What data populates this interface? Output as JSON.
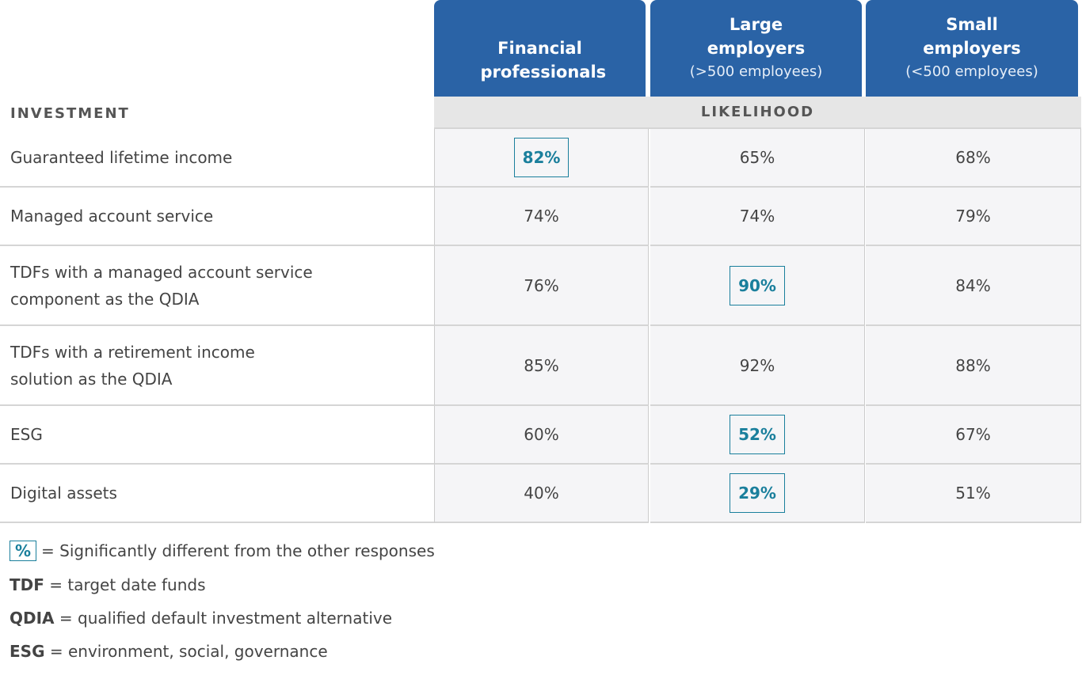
{
  "table": {
    "row_header_label": "INVESTMENT",
    "group_label": "LIKELIHOOD",
    "column_headers": [
      {
        "title": "Financial professionals"
      },
      {
        "title": "Large employers",
        "subtitle": "(>500 employees)"
      },
      {
        "title": "Small employers",
        "subtitle": "(<500 employees)"
      }
    ],
    "rows": [
      {
        "label_lines": [
          "Guaranteed lifetime income"
        ],
        "cells": [
          {
            "text": "82%",
            "significant": true
          },
          {
            "text": "65%",
            "significant": false
          },
          {
            "text": "68%",
            "significant": false
          }
        ]
      },
      {
        "label_lines": [
          "Managed account service"
        ],
        "cells": [
          {
            "text": "74%",
            "significant": false
          },
          {
            "text": "74%",
            "significant": false
          },
          {
            "text": "79%",
            "significant": false
          }
        ]
      },
      {
        "label_lines": [
          "TDFs with a managed account service",
          "component as the QDIA"
        ],
        "cells": [
          {
            "text": "76%",
            "significant": false
          },
          {
            "text": "90%",
            "significant": true
          },
          {
            "text": "84%",
            "significant": false
          }
        ]
      },
      {
        "label_lines": [
          "TDFs with a retirement income",
          "solution as the QDIA"
        ],
        "cells": [
          {
            "text": "85%",
            "significant": false
          },
          {
            "text": "92%",
            "significant": false
          },
          {
            "text": "88%",
            "significant": false
          }
        ]
      },
      {
        "label_lines": [
          "ESG"
        ],
        "cells": [
          {
            "text": "60%",
            "significant": false
          },
          {
            "text": "52%",
            "significant": true
          },
          {
            "text": "67%",
            "significant": false
          }
        ]
      },
      {
        "label_lines": [
          "Digital assets"
        ],
        "cells": [
          {
            "text": "40%",
            "significant": false
          },
          {
            "text": "29%",
            "significant": true
          },
          {
            "text": "51%",
            "significant": false
          }
        ]
      }
    ]
  },
  "legend": {
    "symbol": "%",
    "symbol_text": "= Significantly different from the other responses",
    "items": [
      {
        "term": "TDF",
        "definition": "= target date funds"
      },
      {
        "term": "QDIA",
        "definition": "= qualified default investment alternative"
      },
      {
        "term": "ESG",
        "definition": "= environment, social, governance"
      }
    ]
  }
}
